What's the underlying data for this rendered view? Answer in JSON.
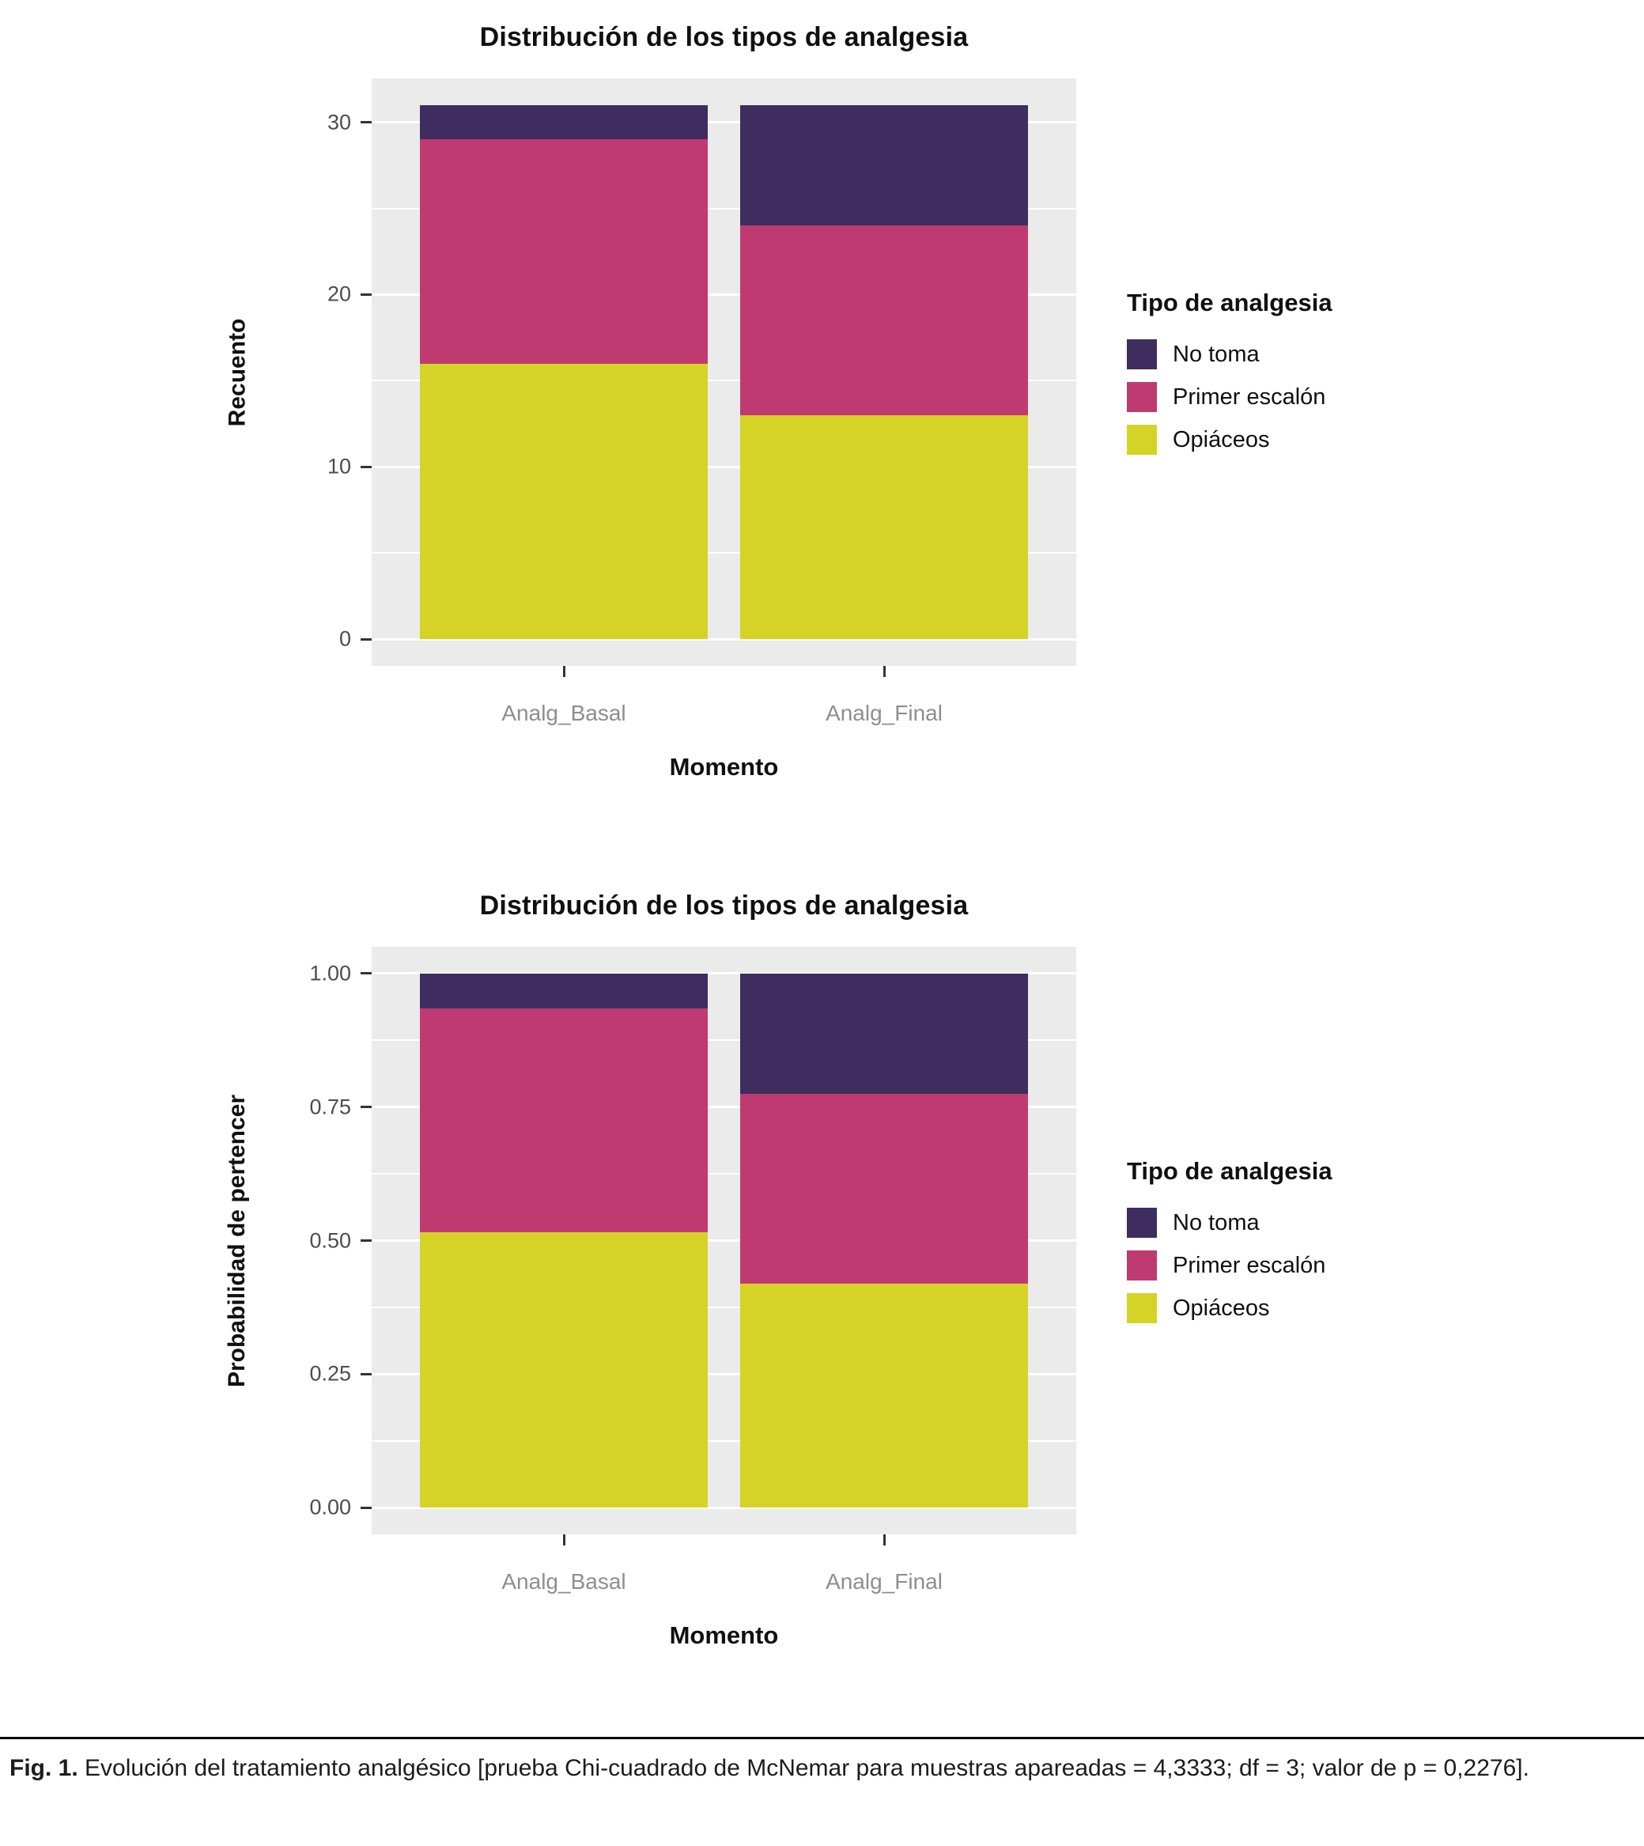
{
  "figure": {
    "caption_label": "Fig. 1.",
    "caption_text": "Evolución del tratamiento analgésico [prueba Chi-cuadrado de McNemar para muestras apareadas = 4,3333; df = 3; valor de p = 0,2276]."
  },
  "legend": {
    "title": "Tipo de analgesia",
    "items": [
      {
        "label": "No toma",
        "color": "#3e2d5e"
      },
      {
        "label": "Primer escalón",
        "color": "#c03a72"
      },
      {
        "label": "Opiáceos",
        "color": "#d6d327"
      }
    ]
  },
  "chart_data": [
    {
      "type": "bar",
      "stacked": true,
      "title": "Distribución de los tipos de analgesia",
      "xlabel": "Momento",
      "ylabel": "Recuento",
      "categories": [
        "Analg_Basal",
        "Analg_Final"
      ],
      "series": [
        {
          "name": "Opiáceos",
          "color": "#d6d327",
          "values": [
            16,
            13
          ]
        },
        {
          "name": "Primer escalón",
          "color": "#c03a72",
          "values": [
            13,
            11
          ]
        },
        {
          "name": "No toma",
          "color": "#3e2d5e",
          "values": [
            2,
            7
          ]
        }
      ],
      "totals": [
        31,
        31
      ],
      "yticks": [
        0,
        10,
        20,
        30
      ],
      "ytick_labels": [
        "0",
        "10",
        "20",
        "30"
      ],
      "ylim": [
        0,
        31
      ],
      "grid": true,
      "legend_position": "right",
      "panel_background": "#ebebeb"
    },
    {
      "type": "bar",
      "stacked": true,
      "title": "Distribución de los tipos de analgesia",
      "xlabel": "Momento",
      "ylabel": "Probabilidad de pertencer",
      "categories": [
        "Analg_Basal",
        "Analg_Final"
      ],
      "series": [
        {
          "name": "Opiáceos",
          "color": "#d6d327",
          "values": [
            0.516,
            0.419
          ]
        },
        {
          "name": "Primer escalón",
          "color": "#c03a72",
          "values": [
            0.419,
            0.355
          ]
        },
        {
          "name": "No toma",
          "color": "#3e2d5e",
          "values": [
            0.065,
            0.226
          ]
        }
      ],
      "totals": [
        1.0,
        1.0
      ],
      "yticks": [
        0,
        0.25,
        0.5,
        0.75,
        1.0
      ],
      "ytick_labels": [
        "0.00",
        "0.25",
        "0.50",
        "0.75",
        "1.00"
      ],
      "ylim": [
        0,
        1
      ],
      "grid": true,
      "legend_position": "right",
      "panel_background": "#ebebeb"
    }
  ]
}
